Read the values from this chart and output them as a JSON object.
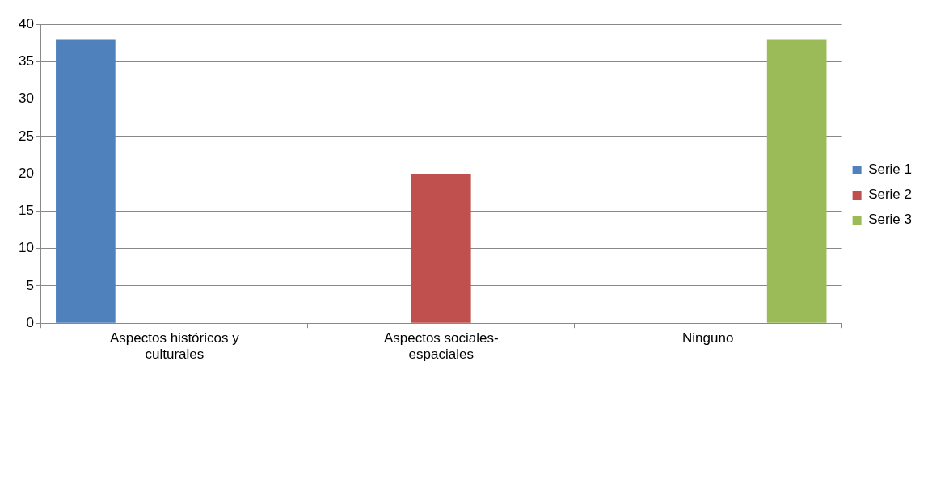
{
  "chart_data": {
    "type": "bar",
    "categories": [
      "Aspectos históricos y culturales",
      "Aspectos sociales-espaciales",
      "Ninguno"
    ],
    "series": [
      {
        "name": "Serie 1",
        "color": "#4f81bd",
        "values": [
          38,
          null,
          null
        ]
      },
      {
        "name": "Serie 2",
        "color": "#c0504d",
        "values": [
          null,
          20,
          null
        ]
      },
      {
        "name": "Serie 3",
        "color": "#9bbb59",
        "values": [
          null,
          null,
          38
        ]
      }
    ],
    "ylim": [
      0,
      40
    ],
    "yticks": [
      0,
      5,
      10,
      15,
      20,
      25,
      30,
      35,
      40
    ],
    "grid": "y",
    "legend": "right"
  }
}
